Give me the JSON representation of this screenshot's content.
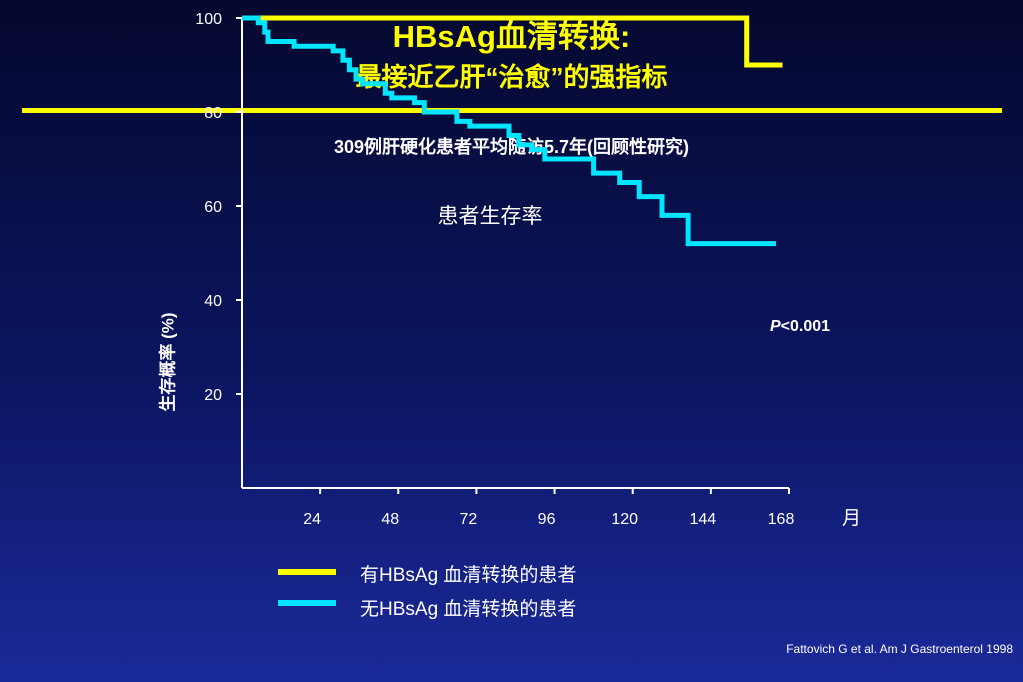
{
  "slide": {
    "title_line1": "HBsAg血清转换:",
    "title_line2": "最接近乙肝“治愈”的强指标",
    "subtitle": "309例肝硬化患者平均随访5.7年(回顾性研究)",
    "citation": "Fattovich G et al. Am J Gastroenterol 1998",
    "colors": {
      "title": "#ffff00",
      "rule": "#ffff00"
    }
  },
  "chart_data": {
    "type": "line",
    "title": "患者生存率",
    "ylabel": "生存概率 (%)",
    "xlabel": "月",
    "xlim": [
      0,
      168
    ],
    "ylim": [
      0,
      100
    ],
    "xticks": [
      24,
      48,
      72,
      96,
      120,
      144,
      168
    ],
    "yticks": [
      20,
      40,
      60,
      80,
      100
    ],
    "annotation": {
      "p_symbol": "P",
      "p_rest": "<0.001"
    },
    "series": [
      {
        "name": "有HBsAg 血清转换的患者",
        "color": "#ffff00",
        "points": [
          [
            0,
            100
          ],
          [
            155,
            100
          ],
          [
            155,
            90
          ],
          [
            166,
            90
          ]
        ]
      },
      {
        "name": "无HBsAg 血清转换的患者",
        "color": "#00e5ff",
        "points": [
          [
            0,
            100
          ],
          [
            5,
            100
          ],
          [
            5,
            99
          ],
          [
            7,
            99
          ],
          [
            7,
            97
          ],
          [
            8,
            97
          ],
          [
            8,
            95
          ],
          [
            16,
            95
          ],
          [
            16,
            94
          ],
          [
            28,
            94
          ],
          [
            28,
            93
          ],
          [
            31,
            93
          ],
          [
            31,
            91
          ],
          [
            33,
            91
          ],
          [
            33,
            89
          ],
          [
            35,
            89
          ],
          [
            35,
            87
          ],
          [
            37,
            87
          ],
          [
            37,
            86
          ],
          [
            44,
            86
          ],
          [
            44,
            84
          ],
          [
            46,
            84
          ],
          [
            46,
            83
          ],
          [
            53,
            83
          ],
          [
            53,
            82
          ],
          [
            56,
            82
          ],
          [
            56,
            80
          ],
          [
            66,
            80
          ],
          [
            66,
            78
          ],
          [
            70,
            78
          ],
          [
            70,
            77
          ],
          [
            82,
            77
          ],
          [
            82,
            75
          ],
          [
            85,
            75
          ],
          [
            85,
            73
          ],
          [
            89,
            73
          ],
          [
            89,
            72
          ],
          [
            93,
            72
          ],
          [
            93,
            70
          ],
          [
            108,
            70
          ],
          [
            108,
            67
          ],
          [
            116,
            67
          ],
          [
            116,
            65
          ],
          [
            122,
            65
          ],
          [
            122,
            62
          ],
          [
            129,
            62
          ],
          [
            129,
            58
          ],
          [
            137,
            58
          ],
          [
            137,
            52
          ],
          [
            164,
            52
          ]
        ]
      }
    ]
  }
}
